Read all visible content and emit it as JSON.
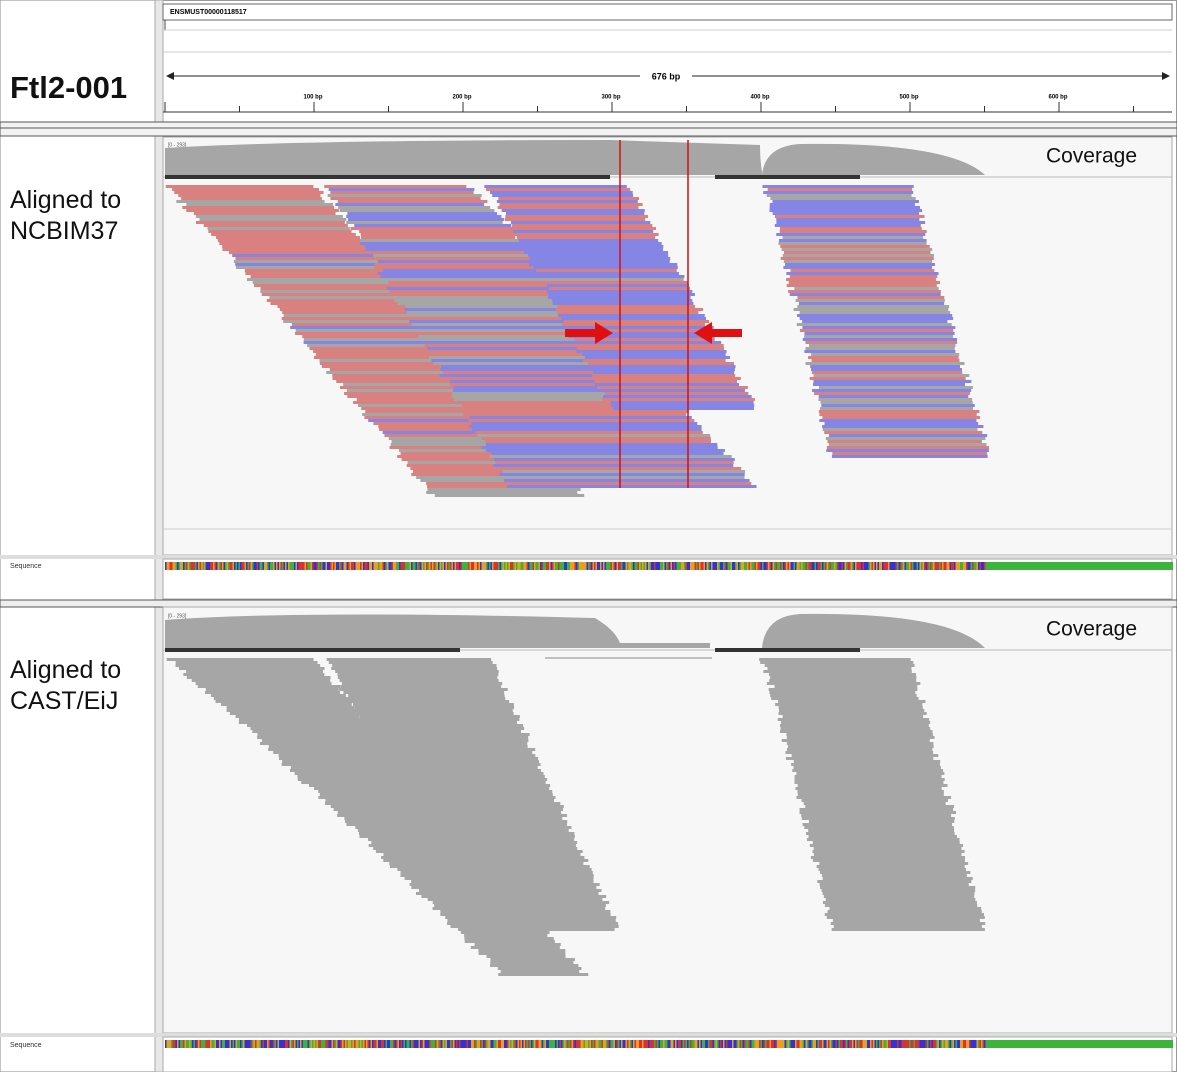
{
  "header": {
    "transcript": "ENSMUST00000118517",
    "gene": "Ftl2-001",
    "span": "676 bp",
    "ruler": [
      "100 bp",
      "200 bp",
      "300 bp",
      "400 bp",
      "500 bp",
      "600 bp"
    ]
  },
  "panels": [
    {
      "label": "Aligned to NCBIM37",
      "coverage": "Coverage",
      "range": "[0 - 293]",
      "sequence": "Sequence"
    },
    {
      "label": "Aligned to CAST/EiJ",
      "coverage": "Coverage",
      "range": "[0 - 293]",
      "sequence": "Sequence"
    }
  ]
}
